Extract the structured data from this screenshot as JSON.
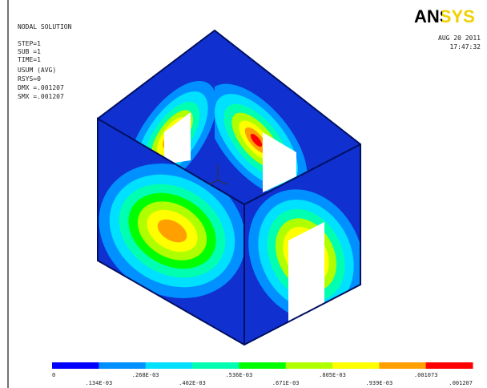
{
  "header": {
    "logo": "ANSYS",
    "date": "AUG 20 2011",
    "time": "17:47:32"
  },
  "info": [
    "NODAL SOLUTION",
    "STEP=1",
    "SUB =1",
    "TIME=1",
    "USUM (AVG)",
    "RSYS=0",
    "DMX =.001207",
    "SMX =.001207"
  ],
  "legend": {
    "labels": [
      "0",
      ".134E-03",
      ".268E-03",
      ".402E-03",
      ".536E-03",
      ".671E-03",
      ".805E-03",
      ".939E-03",
      ".001073",
      ".001207"
    ],
    "colors": [
      "#0000ff",
      "#0090ff",
      "#00e0ff",
      "#00ffb0",
      "#00ff00",
      "#b0ff00",
      "#ffff00",
      "#ffa000",
      "#ff0000"
    ]
  }
}
